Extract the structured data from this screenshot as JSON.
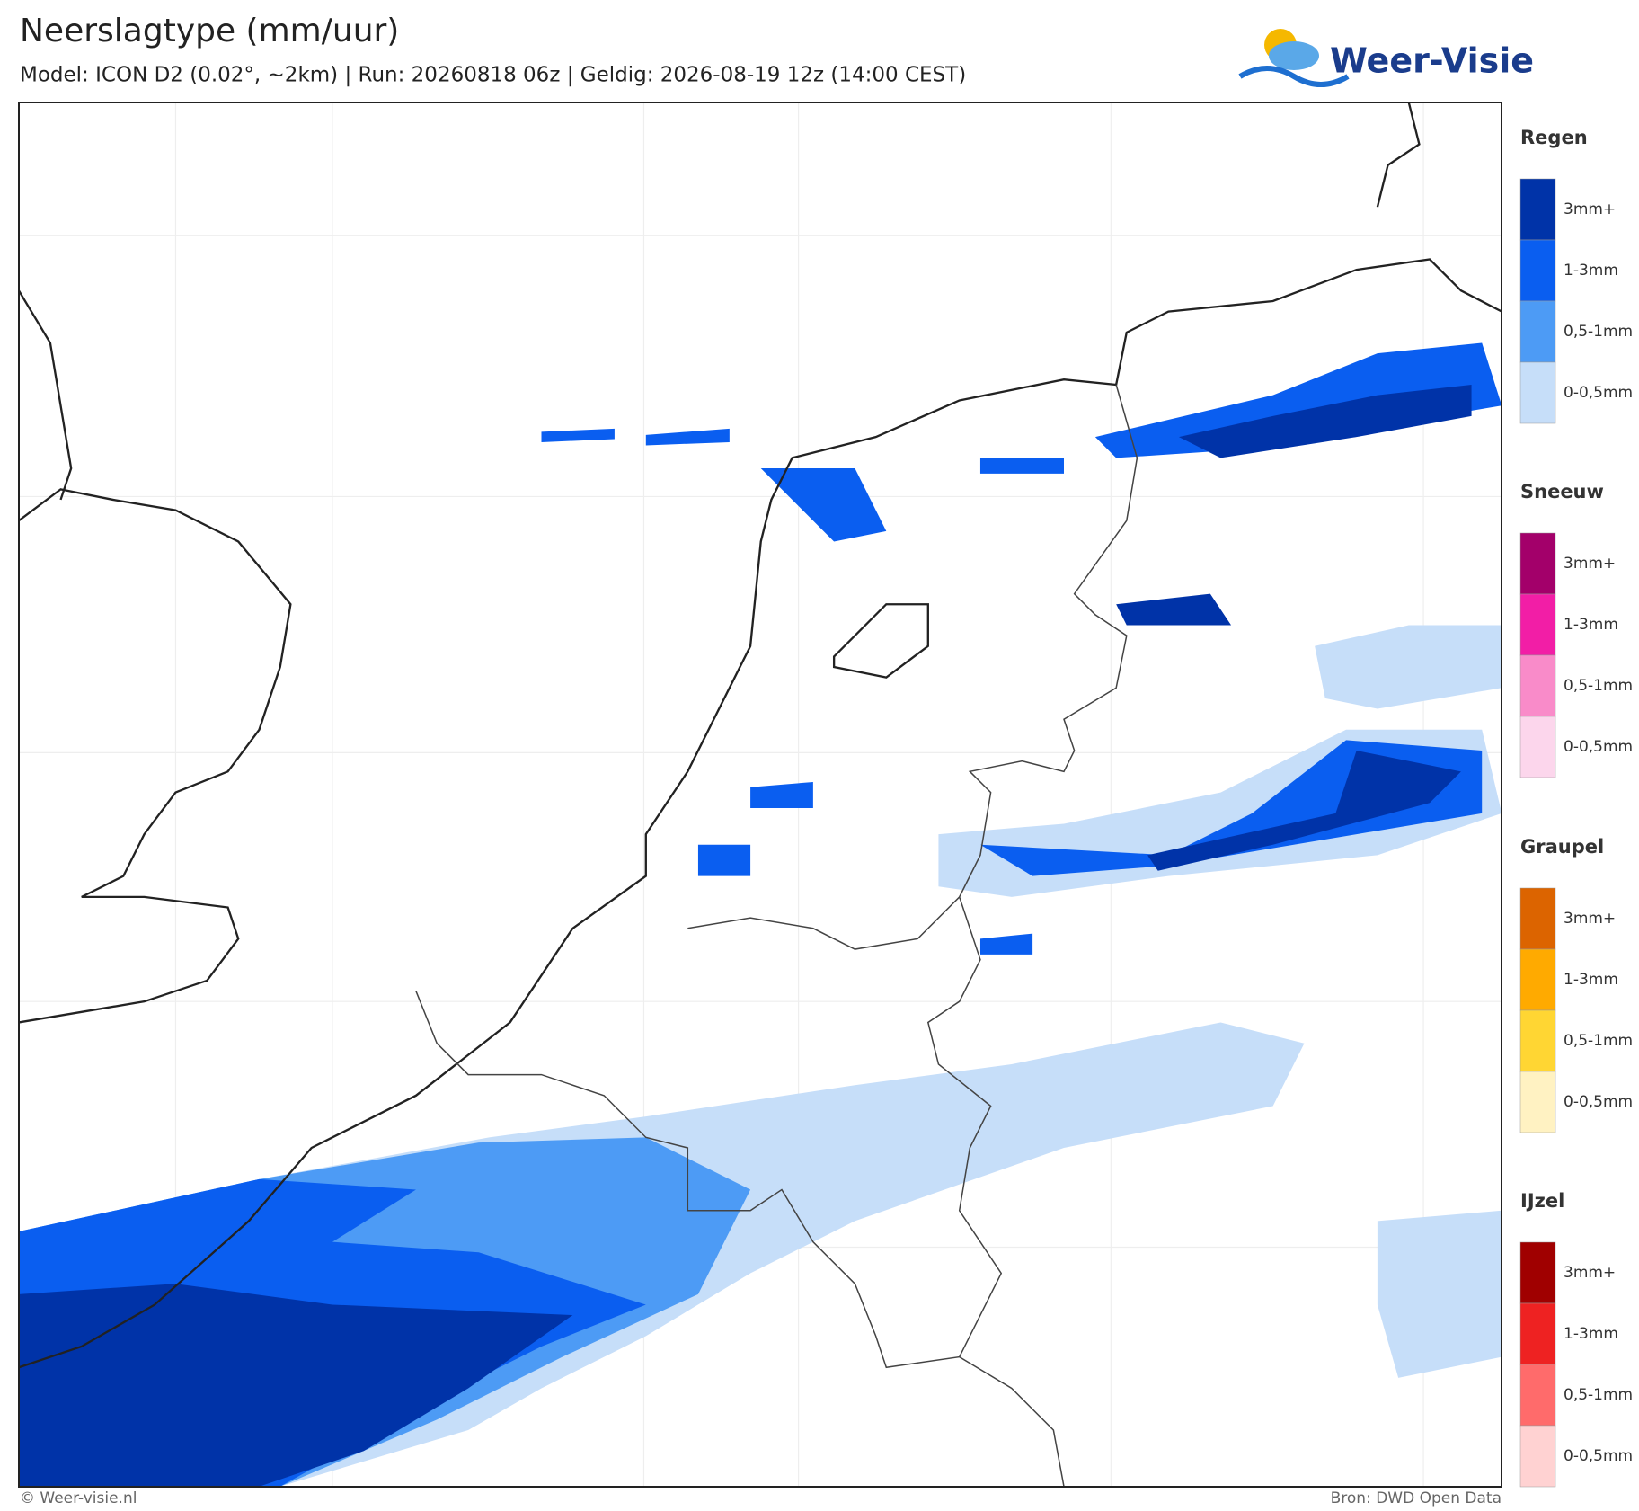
{
  "header": {
    "title": "Neerslagtype (mm/uur)",
    "subtitle": "Model: ICON D2 (0.02°, ~2km)  |  Run: 20260818 06z  |  Geldig: 2026-08-19 12z (14:00 CEST)",
    "logo": "Weer-Visie"
  },
  "legend": [
    {
      "name": "Regen",
      "items": [
        {
          "label": "3mm+",
          "color": "#0033a8"
        },
        {
          "label": "1-3mm",
          "color": "#0a5ef0"
        },
        {
          "label": "0,5-1mm",
          "color": "#4d9bf5"
        },
        {
          "label": "0-0,5mm",
          "color": "#c6def9"
        }
      ]
    },
    {
      "name": "Sneeuw",
      "items": [
        {
          "label": "3mm+",
          "color": "#a3006a"
        },
        {
          "label": "1-3mm",
          "color": "#f21ea6"
        },
        {
          "label": "0,5-1mm",
          "color": "#f98bc9"
        },
        {
          "label": "0-0,5mm",
          "color": "#fcd6ec"
        }
      ]
    },
    {
      "name": "Graupel",
      "items": [
        {
          "label": "3mm+",
          "color": "#dc6400"
        },
        {
          "label": "1-3mm",
          "color": "#ffaa00"
        },
        {
          "label": "0,5-1mm",
          "color": "#ffd633"
        },
        {
          "label": "0-0,5mm",
          "color": "#fff2c2"
        }
      ]
    },
    {
      "name": "IJzel",
      "items": [
        {
          "label": "3mm+",
          "color": "#a00000"
        },
        {
          "label": "1-3mm",
          "color": "#ee2222"
        },
        {
          "label": "0,5-1mm",
          "color": "#ff6b6b"
        },
        {
          "label": "0-0,5mm",
          "color": "#ffd2d2"
        }
      ]
    }
  ],
  "footer": {
    "left": "© Weer-visie.nl",
    "right": "Bron: DWD Open Data"
  }
}
